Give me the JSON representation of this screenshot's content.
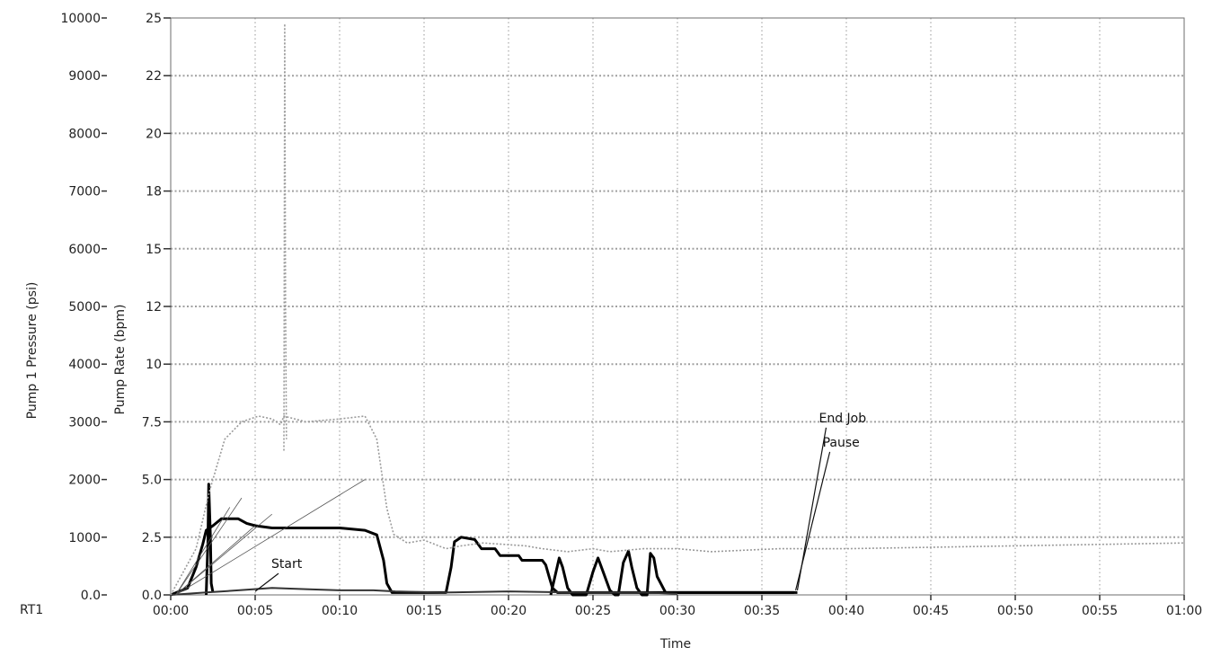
{
  "chart_data": {
    "type": "line",
    "xlabel": "Time",
    "x_unit": "minutes (mm:ss)",
    "xlim": [
      0,
      60
    ],
    "x_ticks": [
      "00:00",
      "00:05",
      "00:10",
      "00:15",
      "00:20",
      "00:25",
      "00:30",
      "00:35",
      "00:40",
      "00:45",
      "00:50",
      "00:55",
      "01:00"
    ],
    "y_axes": [
      {
        "label": "Pump 1 Pressure (psi)",
        "ylim": [
          0,
          10000
        ],
        "ticks": [
          "0.0",
          "1000",
          "2000",
          "3000",
          "4000",
          "5000",
          "6000",
          "7000",
          "8000",
          "9000",
          "10000"
        ]
      },
      {
        "label": "Pump Rate (bpm)",
        "ylim": [
          0,
          25
        ],
        "ticks": [
          "0.0",
          "2.5",
          "5.0",
          "7.5",
          "10",
          "12",
          "15",
          "18",
          "20",
          "22",
          "25"
        ]
      }
    ],
    "series": [
      {
        "axis": "rate",
        "color": "#000000",
        "points": [
          [
            0,
            0
          ],
          [
            1,
            0.3
          ],
          [
            1.5,
            1.2
          ],
          [
            1.9,
            2.2
          ],
          [
            2.1,
            2.8
          ],
          [
            2.5,
            3.0
          ],
          [
            3,
            3.3
          ],
          [
            4,
            3.3
          ],
          [
            4.5,
            3.1
          ],
          [
            5,
            3.0
          ],
          [
            6,
            2.9
          ],
          [
            8,
            2.9
          ],
          [
            10,
            2.9
          ],
          [
            11.5,
            2.8
          ],
          [
            12.2,
            2.6
          ],
          [
            12.6,
            1.5
          ],
          [
            12.8,
            0.5
          ],
          [
            13.1,
            0.1
          ],
          [
            13.4,
            0.1
          ],
          [
            16.3,
            0.1
          ],
          [
            16.6,
            1.2
          ],
          [
            16.8,
            2.3
          ],
          [
            17.2,
            2.5
          ],
          [
            18,
            2.4
          ],
          [
            18.4,
            2.0
          ],
          [
            19.2,
            2.0
          ],
          [
            19.5,
            1.7
          ],
          [
            20.6,
            1.7
          ],
          [
            20.8,
            1.5
          ],
          [
            22,
            1.5
          ],
          [
            22.2,
            1.3
          ],
          [
            22.4,
            0.8
          ],
          [
            22.6,
            0.3
          ],
          [
            22.9,
            0.1
          ],
          [
            36.8,
            0.1
          ],
          [
            37.1,
            0.1
          ]
        ]
      },
      {
        "axis": "rate",
        "color": "#000000",
        "points": [
          [
            2.1,
            0
          ],
          [
            2.2,
            2.3
          ],
          [
            2.25,
            4.8
          ],
          [
            2.35,
            2.5
          ],
          [
            2.4,
            0.5
          ],
          [
            2.5,
            0.1
          ]
        ]
      },
      {
        "axis": "rate",
        "color": "#000000",
        "points": [
          [
            22.5,
            0
          ],
          [
            23,
            1.6
          ],
          [
            23.2,
            1.2
          ],
          [
            23.5,
            0.3
          ],
          [
            23.8,
            0
          ],
          [
            24.6,
            0
          ],
          [
            25,
            1.0
          ],
          [
            25.3,
            1.6
          ],
          [
            25.6,
            1.0
          ],
          [
            26,
            0.2
          ],
          [
            26.3,
            0
          ],
          [
            26.5,
            0
          ],
          [
            26.8,
            1.4
          ],
          [
            27.1,
            1.9
          ],
          [
            27.3,
            1.2
          ],
          [
            27.6,
            0.3
          ],
          [
            27.9,
            0
          ],
          [
            28.2,
            0
          ],
          [
            28.4,
            1.8
          ],
          [
            28.6,
            1.6
          ],
          [
            28.8,
            0.8
          ],
          [
            29.3,
            0.1
          ],
          [
            36.9,
            0.1
          ]
        ]
      },
      {
        "axis": "rate",
        "color": "#333333",
        "points": [
          [
            0,
            0
          ],
          [
            2,
            0.1
          ],
          [
            4,
            0.2
          ],
          [
            6,
            0.3
          ],
          [
            8,
            0.25
          ],
          [
            10,
            0.2
          ],
          [
            12,
            0.2
          ],
          [
            13.3,
            0.15
          ],
          [
            16,
            0.1
          ],
          [
            20,
            0.15
          ],
          [
            24,
            0.1
          ],
          [
            28,
            0.1
          ],
          [
            30,
            0.05
          ]
        ]
      },
      {
        "axis": "pressure",
        "color": "#9a9a9a",
        "points": [
          [
            0,
            0
          ],
          [
            1.5,
            800
          ],
          [
            2.3,
            1800
          ],
          [
            3.2,
            2700
          ],
          [
            4.2,
            3000
          ],
          [
            5.2,
            3100
          ],
          [
            6,
            3050
          ],
          [
            6.5,
            2950
          ],
          [
            6.7,
            3100
          ],
          [
            8,
            3000
          ],
          [
            10,
            3050
          ],
          [
            11.5,
            3100
          ],
          [
            12.2,
            2700
          ],
          [
            12.8,
            1500
          ],
          [
            13.2,
            1050
          ],
          [
            14,
            900
          ],
          [
            15,
            950
          ],
          [
            16.3,
            800
          ],
          [
            17.2,
            850
          ],
          [
            18.5,
            900
          ],
          [
            21,
            850
          ],
          [
            22,
            800
          ],
          [
            23.5,
            750
          ],
          [
            25,
            800
          ],
          [
            26,
            750
          ],
          [
            28,
            800
          ],
          [
            30,
            800
          ],
          [
            32,
            750
          ],
          [
            36,
            800
          ],
          [
            40,
            800
          ],
          [
            50,
            850
          ],
          [
            60,
            900
          ]
        ]
      },
      {
        "axis": "pressure",
        "color": "#9a9a9a",
        "points": [
          [
            6.7,
            2500
          ],
          [
            6.75,
            9900
          ],
          [
            6.8,
            5000
          ],
          [
            6.85,
            2700
          ]
        ]
      }
    ],
    "annotations": [
      {
        "text": "Start",
        "x": 5,
        "y_rate": 0.15
      },
      {
        "text": "End Job",
        "x": 37.1,
        "y_rate": 0.2
      },
      {
        "text": "Pause",
        "x": 37.0,
        "y_rate": 0.2
      }
    ],
    "corner_label": "RT1",
    "grid": true
  }
}
